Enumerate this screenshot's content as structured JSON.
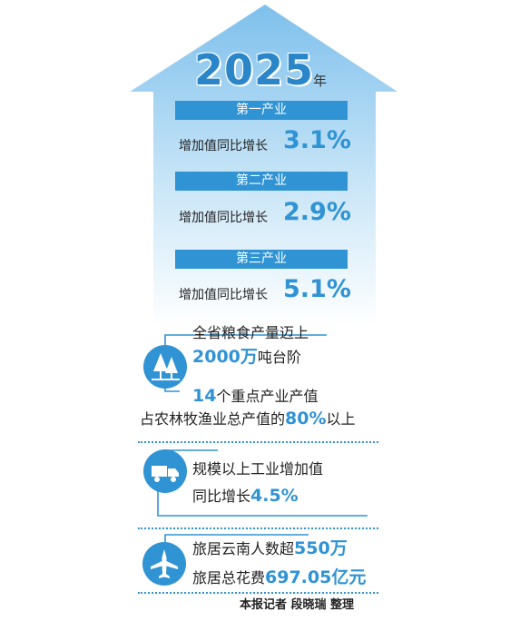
{
  "year": {
    "value": "2025",
    "unit": "年"
  },
  "industries": [
    {
      "name": "第一产业",
      "metric": "增加值同比增长",
      "value": "3.1%"
    },
    {
      "name": "第二产业",
      "metric": "增加值同比增长",
      "value": "2.9%"
    },
    {
      "name": "第三产业",
      "metric": "增加值同比增长",
      "value": "5.1%"
    }
  ],
  "agriculture": {
    "line1": "全省粮食产量迈上",
    "line2_value": "2000",
    "line2_unit": "万",
    "line2_rest": "吨台阶",
    "line3_value": "14",
    "line3_rest": "个重点产业产值",
    "line4_prefix": "占农林牧渔业总产值的",
    "line4_value": "80%",
    "line4_suffix": "以上"
  },
  "industry": {
    "line1": "规模以上工业增加值",
    "line2_prefix": "同比增长",
    "line2_value": "4.5%"
  },
  "tourism": {
    "line1_prefix": "旅居云南人数超",
    "line1_value": "550",
    "line1_unit": "万",
    "line2_prefix": "旅居总花费",
    "line2_value": "697.05",
    "line2_unit": "亿元"
  },
  "credit": "本报记者 段晓瑞 整理",
  "icons": [
    "trees-icon",
    "truck-icon",
    "airplane-icon"
  ],
  "colors": {
    "accent": "#2f93d4",
    "arrow": "#8ec9ee"
  }
}
